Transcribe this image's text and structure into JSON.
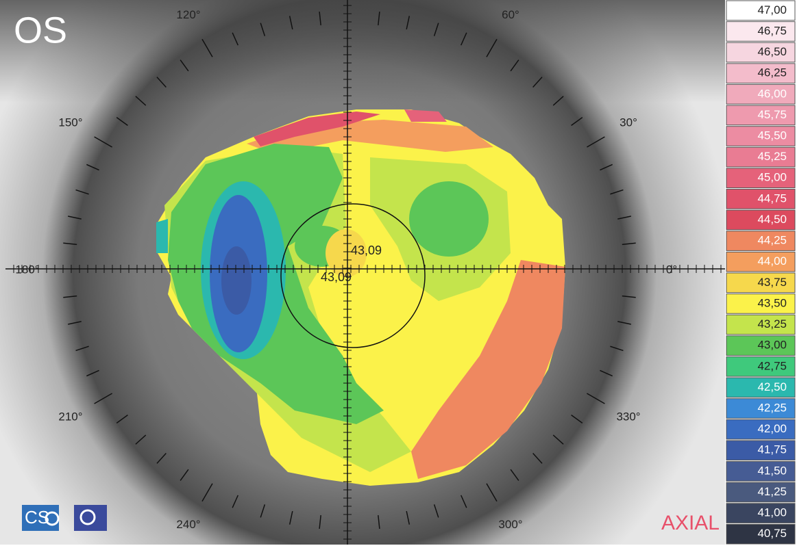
{
  "eye": "OS",
  "map_type": "AXIAL",
  "logo": "CS",
  "angle_labels": [
    "0°",
    "30°",
    "60°",
    "120°",
    "150°",
    "180°",
    "210°",
    "240°",
    "300°",
    "330°"
  ],
  "center_values": [
    "43,09",
    "43,09"
  ],
  "scale": [
    {
      "label": "47,00",
      "color": "#ffffff"
    },
    {
      "label": "46,75",
      "color": "#fbe8ee"
    },
    {
      "label": "46,50",
      "color": "#f6d6e0"
    },
    {
      "label": "46,25",
      "color": "#f3bccb"
    },
    {
      "label": "46,00",
      "color": "#f0aabb"
    },
    {
      "label": "45,75",
      "color": "#ee9aae"
    },
    {
      "label": "45,50",
      "color": "#ec8ca2"
    },
    {
      "label": "45,25",
      "color": "#e97c93"
    },
    {
      "label": "45,00",
      "color": "#e5627a"
    },
    {
      "label": "44,75",
      "color": "#e0526a"
    },
    {
      "label": "44,50",
      "color": "#dc4a5e"
    },
    {
      "label": "44,25",
      "color": "#ef8860"
    },
    {
      "label": "44,00",
      "color": "#f49e5e"
    },
    {
      "label": "43,75",
      "color": "#f6d84c"
    },
    {
      "label": "43,50",
      "color": "#fbf24a"
    },
    {
      "label": "43,25",
      "color": "#c4e44c"
    },
    {
      "label": "43,00",
      "color": "#5cc658"
    },
    {
      "label": "42,75",
      "color": "#3fc97c"
    },
    {
      "label": "42,50",
      "color": "#2bb8ae"
    },
    {
      "label": "42,25",
      "color": "#3c8ad6"
    },
    {
      "label": "42,00",
      "color": "#3a6cc0"
    },
    {
      "label": "41,75",
      "color": "#3b5ba6"
    },
    {
      "label": "41,50",
      "color": "#465c94"
    },
    {
      "label": "41,25",
      "color": "#4a5a7e"
    },
    {
      "label": "41,00",
      "color": "#3a4560"
    },
    {
      "label": "40,75",
      "color": "#2e3444"
    }
  ]
}
